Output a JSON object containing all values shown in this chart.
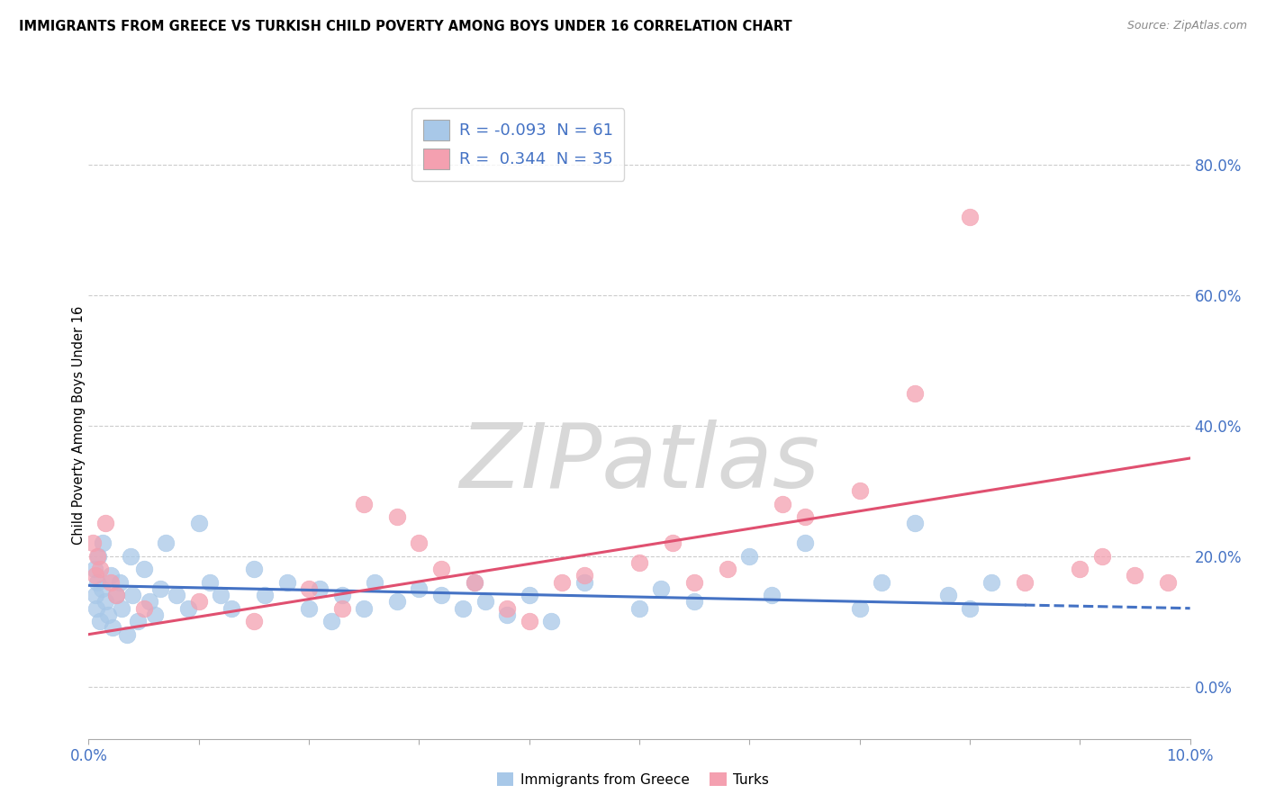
{
  "title": "IMMIGRANTS FROM GREECE VS TURKISH CHILD POVERTY AMONG BOYS UNDER 16 CORRELATION CHART",
  "source": "Source: ZipAtlas.com",
  "ylabel": "Child Poverty Among Boys Under 16",
  "x_min": 0.0,
  "x_max": 10.0,
  "y_min": -8.0,
  "y_max": 88.0,
  "y_ticks": [
    0,
    20,
    40,
    60,
    80
  ],
  "y_tick_labels": [
    "0.0%",
    "20.0%",
    "40.0%",
    "60.0%",
    "80.0%"
  ],
  "x_ticks": [
    0,
    1,
    2,
    3,
    4,
    5,
    6,
    7,
    8,
    9,
    10
  ],
  "x_tick_labels": [
    "0.0%",
    "",
    "",
    "",
    "",
    "",
    "",
    "",
    "",
    "",
    "10.0%"
  ],
  "blue_R": -0.093,
  "blue_N": 61,
  "pink_R": 0.344,
  "pink_N": 35,
  "blue_color": "#a8c8e8",
  "pink_color": "#f4a0b0",
  "blue_line_color": "#4472c4",
  "pink_line_color": "#e05070",
  "legend_label_blue": "Immigrants from Greece",
  "legend_label_pink": "Turks",
  "watermark": "ZIPatlas",
  "blue_line_x0": 0.0,
  "blue_line_y0": 15.5,
  "blue_line_x1": 8.5,
  "blue_line_y1": 12.5,
  "blue_dash_x0": 8.5,
  "blue_dash_y0": 12.5,
  "blue_dash_x1": 10.0,
  "blue_dash_y1": 12.0,
  "pink_line_x0": 0.0,
  "pink_line_y0": 8.0,
  "pink_line_x1": 10.0,
  "pink_line_y1": 35.0,
  "blue_scatter_x": [
    0.05,
    0.06,
    0.07,
    0.08,
    0.09,
    0.1,
    0.12,
    0.13,
    0.15,
    0.18,
    0.2,
    0.22,
    0.25,
    0.28,
    0.3,
    0.35,
    0.38,
    0.4,
    0.45,
    0.5,
    0.55,
    0.6,
    0.65,
    0.7,
    0.8,
    0.9,
    1.0,
    1.1,
    1.2,
    1.3,
    1.5,
    1.6,
    1.8,
    2.0,
    2.1,
    2.2,
    2.3,
    2.5,
    2.6,
    2.8,
    3.0,
    3.2,
    3.4,
    3.5,
    3.6,
    3.8,
    4.0,
    4.2,
    4.5,
    5.0,
    5.2,
    5.5,
    6.0,
    6.2,
    6.5,
    7.0,
    7.2,
    7.5,
    7.8,
    8.0,
    8.2
  ],
  "blue_scatter_y": [
    18,
    14,
    12,
    16,
    20,
    10,
    15,
    22,
    13,
    11,
    17,
    9,
    14,
    16,
    12,
    8,
    20,
    14,
    10,
    18,
    13,
    11,
    15,
    22,
    14,
    12,
    25,
    16,
    14,
    12,
    18,
    14,
    16,
    12,
    15,
    10,
    14,
    12,
    16,
    13,
    15,
    14,
    12,
    16,
    13,
    11,
    14,
    10,
    16,
    12,
    15,
    13,
    20,
    14,
    22,
    12,
    16,
    25,
    14,
    12,
    16
  ],
  "pink_scatter_x": [
    0.04,
    0.06,
    0.08,
    0.1,
    0.15,
    0.2,
    0.25,
    0.5,
    1.0,
    1.5,
    2.0,
    2.3,
    2.5,
    2.8,
    3.0,
    3.2,
    3.5,
    3.8,
    4.0,
    4.3,
    4.5,
    5.0,
    5.3,
    5.5,
    5.8,
    6.3,
    6.5,
    7.0,
    7.5,
    8.0,
    8.5,
    9.0,
    9.2,
    9.5,
    9.8
  ],
  "pink_scatter_y": [
    22,
    17,
    20,
    18,
    25,
    16,
    14,
    12,
    13,
    10,
    15,
    12,
    28,
    26,
    22,
    18,
    16,
    12,
    10,
    16,
    17,
    19,
    22,
    16,
    18,
    28,
    26,
    30,
    45,
    72,
    16,
    18,
    20,
    17,
    16
  ]
}
